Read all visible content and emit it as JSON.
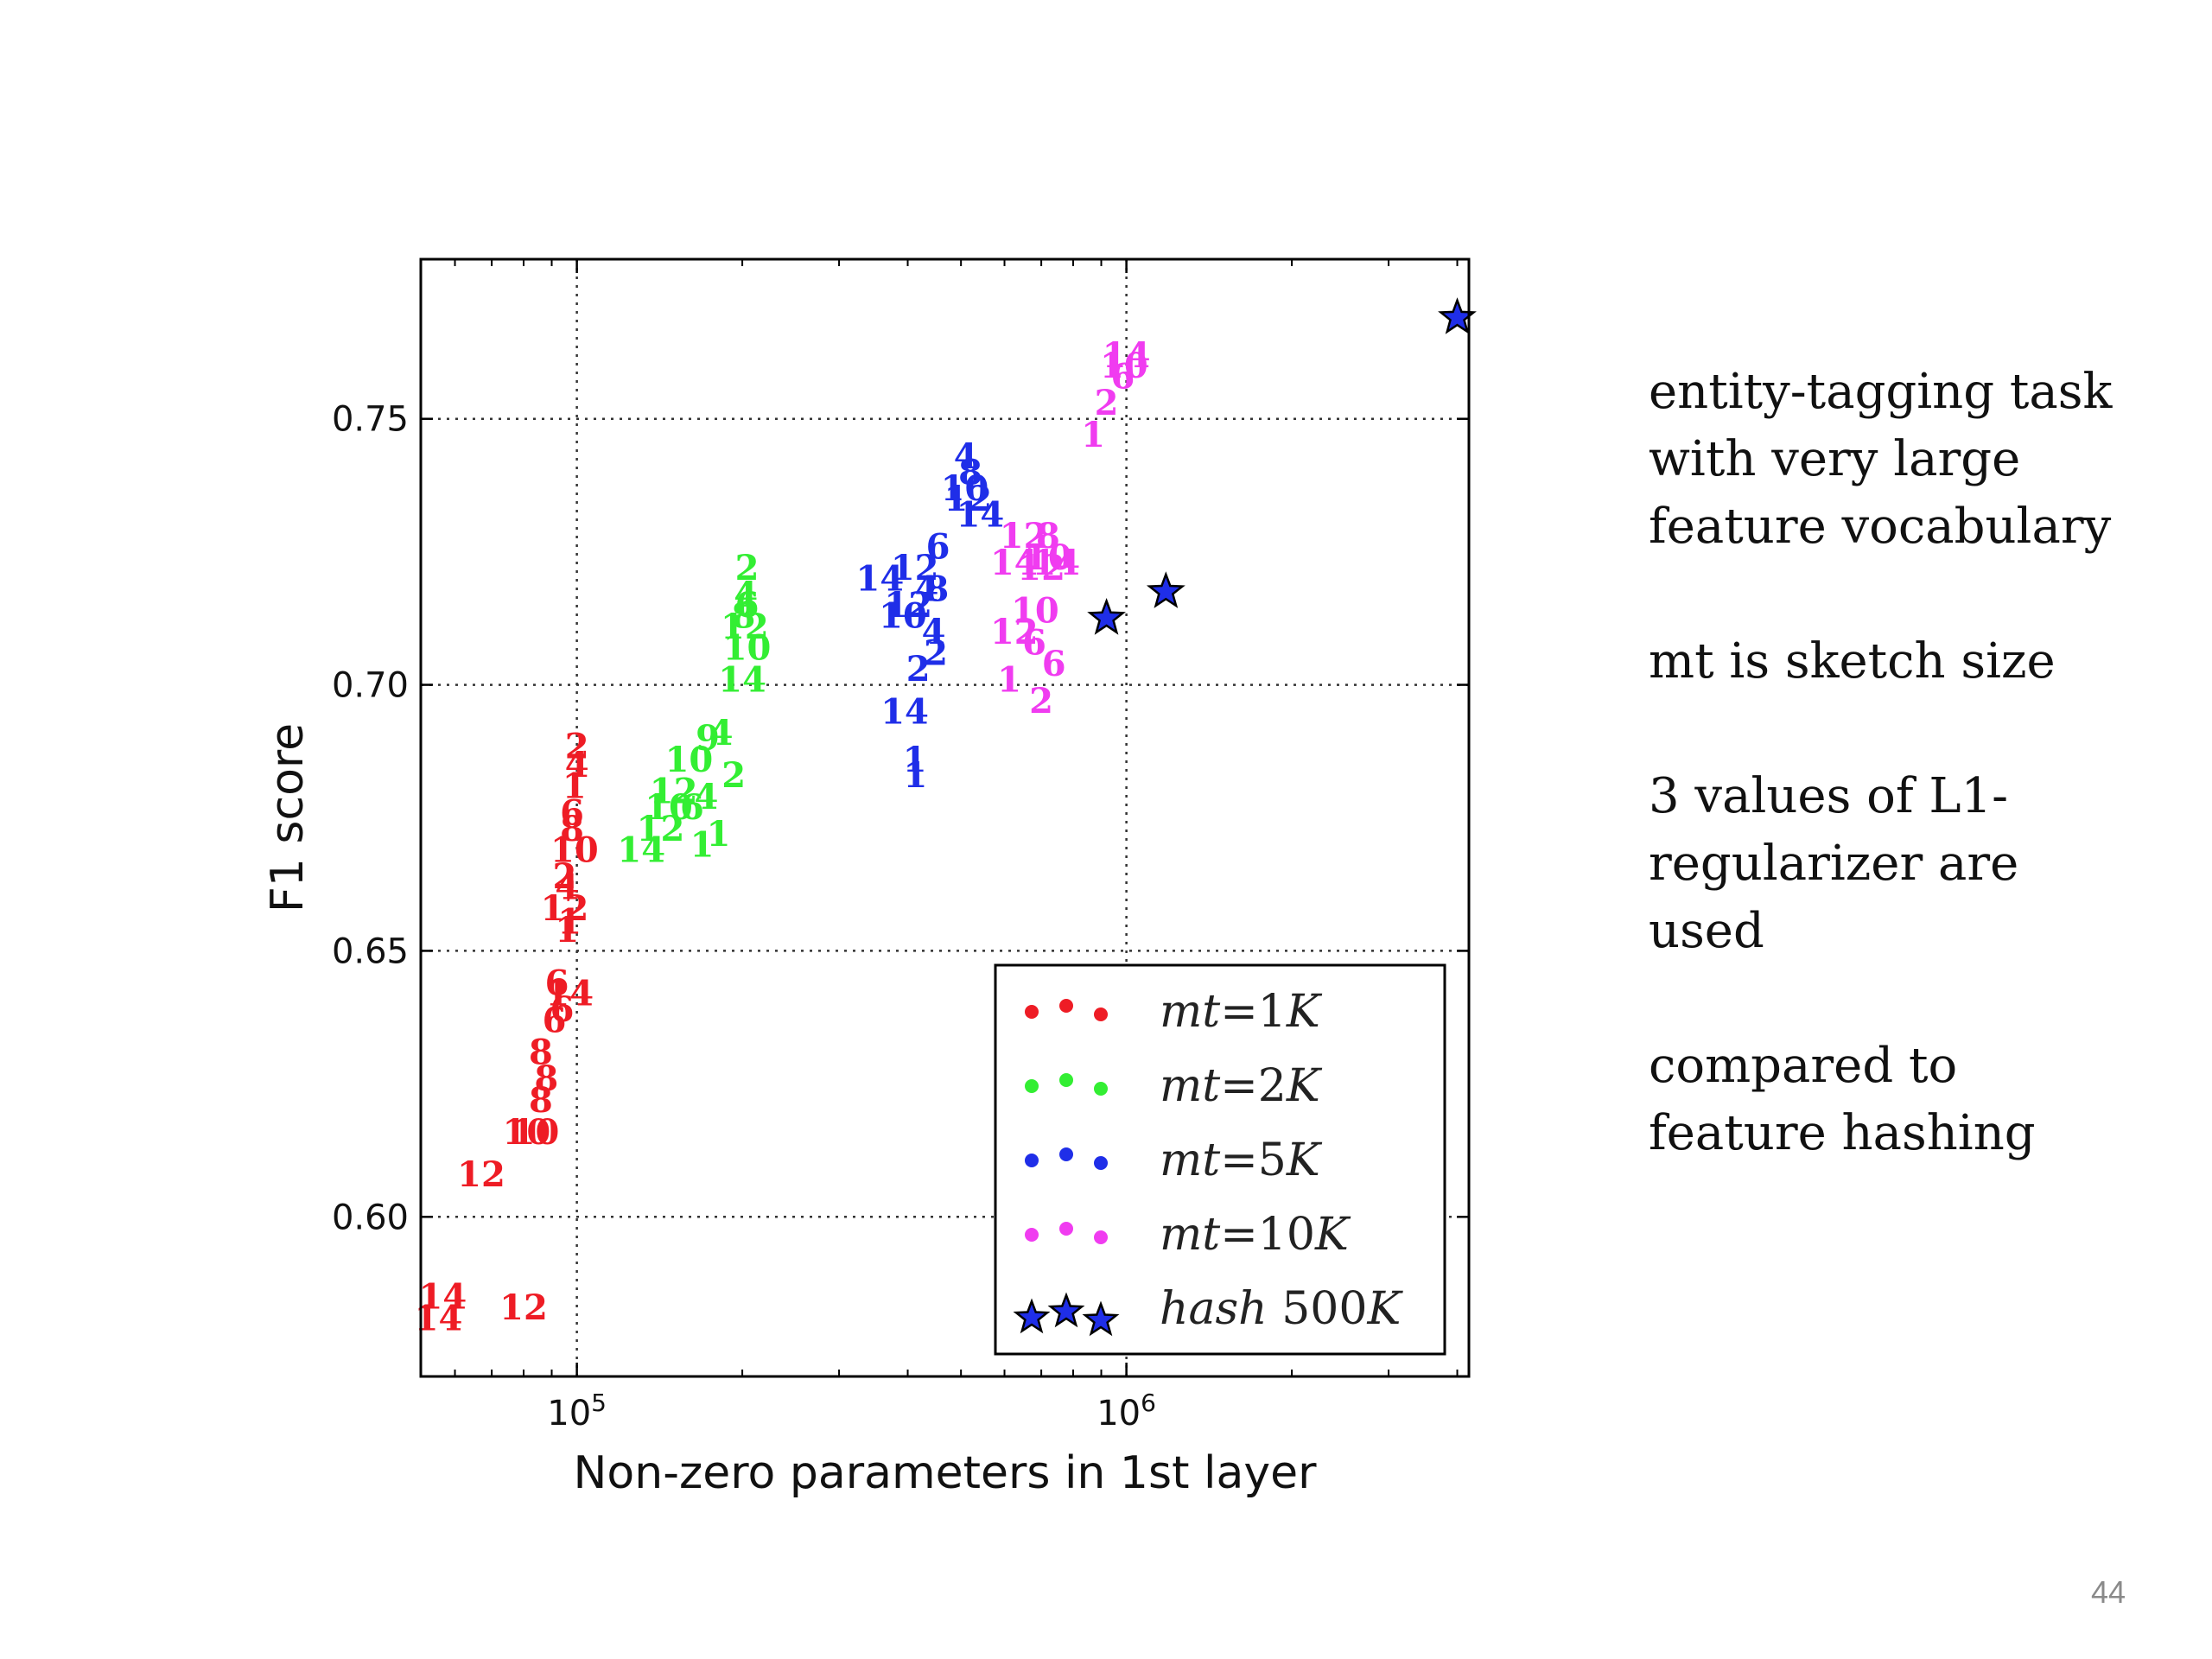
{
  "side_text": {
    "p1": "entity-tagging task\nwith very large\nfeature vocabulary",
    "p2": "mt is sketch size",
    "p3": "3 values of L1-\nregularizer are\nused",
    "p4": "compared to\nfeature hashing"
  },
  "page_number": "44",
  "chart_data": {
    "type": "scatter",
    "xlabel": "Non-zero parameters in 1st layer",
    "ylabel": "F1 score",
    "xscale": "log",
    "xlim": [
      52000,
      4200000
    ],
    "ylim": [
      0.57,
      0.78
    ],
    "xticks": [
      {
        "value": 100000,
        "base": "10",
        "exp": "5"
      },
      {
        "value": 1000000,
        "base": "10",
        "exp": "6"
      }
    ],
    "yticks": [
      {
        "value": 0.6,
        "label": "0.60"
      },
      {
        "value": 0.65,
        "label": "0.65"
      },
      {
        "value": 0.7,
        "label": "0.70"
      },
      {
        "value": 0.75,
        "label": "0.75"
      }
    ],
    "grid": true,
    "legend_position": "bottom-right",
    "series": [
      {
        "name": "mt=1K",
        "name_parts": [
          "mt",
          "=1",
          "K"
        ],
        "color": "#ee1c25",
        "marker": "number",
        "points": [
          {
            "x": 100000,
            "y": 0.6885,
            "label": "2"
          },
          {
            "x": 100000,
            "y": 0.685,
            "label": "4"
          },
          {
            "x": 99000,
            "y": 0.681,
            "label": "1"
          },
          {
            "x": 98000,
            "y": 0.676,
            "label": "6"
          },
          {
            "x": 98000,
            "y": 0.673,
            "label": "8"
          },
          {
            "x": 99000,
            "y": 0.669,
            "label": "10"
          },
          {
            "x": 95000,
            "y": 0.664,
            "label": "2"
          },
          {
            "x": 96000,
            "y": 0.662,
            "label": "4"
          },
          {
            "x": 95000,
            "y": 0.658,
            "label": "12"
          },
          {
            "x": 97000,
            "y": 0.6555,
            "label": "1"
          },
          {
            "x": 96000,
            "y": 0.654,
            "label": "1"
          },
          {
            "x": 92000,
            "y": 0.644,
            "label": "6"
          },
          {
            "x": 97000,
            "y": 0.642,
            "label": "14"
          },
          {
            "x": 94000,
            "y": 0.639,
            "label": "6"
          },
          {
            "x": 91000,
            "y": 0.637,
            "label": "6"
          },
          {
            "x": 86000,
            "y": 0.631,
            "label": "8"
          },
          {
            "x": 88000,
            "y": 0.626,
            "label": "8"
          },
          {
            "x": 86000,
            "y": 0.622,
            "label": "8"
          },
          {
            "x": 81000,
            "y": 0.616,
            "label": "10"
          },
          {
            "x": 84000,
            "y": 0.616,
            "label": "10"
          },
          {
            "x": 67000,
            "y": 0.608,
            "label": "12"
          },
          {
            "x": 80000,
            "y": 0.583,
            "label": "12"
          },
          {
            "x": 57000,
            "y": 0.585,
            "label": "14"
          },
          {
            "x": 56000,
            "y": 0.581,
            "label": "14"
          }
        ]
      },
      {
        "name": "mt=2K",
        "name_parts": [
          "mt",
          "=2",
          "K"
        ],
        "color": "#33ee33",
        "marker": "number",
        "points": [
          {
            "x": 204000,
            "y": 0.722,
            "label": "2"
          },
          {
            "x": 203000,
            "y": 0.717,
            "label": "4"
          },
          {
            "x": 204000,
            "y": 0.715,
            "label": "6"
          },
          {
            "x": 201000,
            "y": 0.713,
            "label": "8"
          },
          {
            "x": 202000,
            "y": 0.711,
            "label": "12"
          },
          {
            "x": 204000,
            "y": 0.707,
            "label": "10"
          },
          {
            "x": 200000,
            "y": 0.701,
            "label": "14"
          },
          {
            "x": 173000,
            "y": 0.69,
            "label": "9"
          },
          {
            "x": 183000,
            "y": 0.691,
            "label": "4"
          },
          {
            "x": 160000,
            "y": 0.686,
            "label": "10"
          },
          {
            "x": 193000,
            "y": 0.683,
            "label": "2"
          },
          {
            "x": 150000,
            "y": 0.68,
            "label": "12"
          },
          {
            "x": 172000,
            "y": 0.679,
            "label": "4"
          },
          {
            "x": 147000,
            "y": 0.677,
            "label": "10"
          },
          {
            "x": 162000,
            "y": 0.677,
            "label": "6"
          },
          {
            "x": 142000,
            "y": 0.673,
            "label": "12"
          },
          {
            "x": 181000,
            "y": 0.672,
            "label": "1"
          },
          {
            "x": 169000,
            "y": 0.67,
            "label": "1"
          },
          {
            "x": 131000,
            "y": 0.669,
            "label": "14"
          }
        ]
      },
      {
        "name": "mt=5K",
        "name_parts": [
          "mt",
          "=5",
          "K"
        ],
        "color": "#1f2ee8",
        "marker": "number",
        "points": [
          {
            "x": 510000,
            "y": 0.743,
            "label": "4"
          },
          {
            "x": 520000,
            "y": 0.74,
            "label": "8"
          },
          {
            "x": 508000,
            "y": 0.737,
            "label": "10"
          },
          {
            "x": 515000,
            "y": 0.735,
            "label": "12"
          },
          {
            "x": 542000,
            "y": 0.732,
            "label": "14"
          },
          {
            "x": 454000,
            "y": 0.726,
            "label": "6"
          },
          {
            "x": 412000,
            "y": 0.722,
            "label": "12"
          },
          {
            "x": 433000,
            "y": 0.718,
            "label": "4"
          },
          {
            "x": 452000,
            "y": 0.718,
            "label": "8"
          },
          {
            "x": 356000,
            "y": 0.72,
            "label": "14"
          },
          {
            "x": 401000,
            "y": 0.715,
            "label": "12"
          },
          {
            "x": 392000,
            "y": 0.713,
            "label": "10"
          },
          {
            "x": 446000,
            "y": 0.71,
            "label": "4"
          },
          {
            "x": 450000,
            "y": 0.706,
            "label": "2"
          },
          {
            "x": 418000,
            "y": 0.703,
            "label": "2"
          },
          {
            "x": 395000,
            "y": 0.695,
            "label": "14"
          },
          {
            "x": 412000,
            "y": 0.686,
            "label": "1"
          },
          {
            "x": 413000,
            "y": 0.683,
            "label": "1"
          }
        ]
      },
      {
        "name": "mt=10K",
        "name_parts": [
          "mt",
          "=10",
          "K"
        ],
        "color": "#f03cf0",
        "marker": "number",
        "points": [
          {
            "x": 1000000,
            "y": 0.762,
            "label": "14"
          },
          {
            "x": 990000,
            "y": 0.76,
            "label": "10"
          },
          {
            "x": 985000,
            "y": 0.758,
            "label": "6"
          },
          {
            "x": 920000,
            "y": 0.753,
            "label": "2"
          },
          {
            "x": 870000,
            "y": 0.747,
            "label": "1"
          },
          {
            "x": 650000,
            "y": 0.728,
            "label": "12"
          },
          {
            "x": 720000,
            "y": 0.728,
            "label": "8"
          },
          {
            "x": 625000,
            "y": 0.723,
            "label": "14"
          },
          {
            "x": 720000,
            "y": 0.724,
            "label": "10"
          },
          {
            "x": 700000,
            "y": 0.722,
            "label": "12"
          },
          {
            "x": 745000,
            "y": 0.723,
            "label": "14"
          },
          {
            "x": 682000,
            "y": 0.714,
            "label": "10"
          },
          {
            "x": 625000,
            "y": 0.71,
            "label": "12"
          },
          {
            "x": 680000,
            "y": 0.708,
            "label": "6"
          },
          {
            "x": 738000,
            "y": 0.704,
            "label": "6"
          },
          {
            "x": 612000,
            "y": 0.701,
            "label": "1"
          },
          {
            "x": 700000,
            "y": 0.697,
            "label": "2"
          }
        ]
      },
      {
        "name": "hash 500K",
        "name_parts": [
          "hash",
          "500",
          "K"
        ],
        "color": "#1f2ee8",
        "marker": "star",
        "points": [
          {
            "x": 920000,
            "y": 0.7125
          },
          {
            "x": 1180000,
            "y": 0.7175
          },
          {
            "x": 4000000,
            "y": 0.769
          }
        ]
      }
    ]
  }
}
